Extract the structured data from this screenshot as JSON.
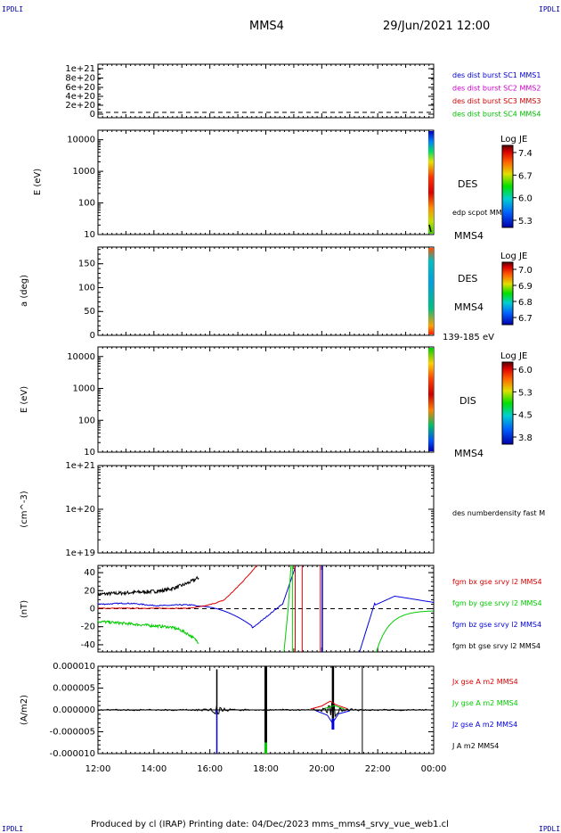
{
  "header": {
    "corner_label": "IPDLI",
    "spacecraft": "MMS4",
    "datetime": "29/Jun/2021 12:00"
  },
  "footer": {
    "text": "Produced by cl (IRAP)   Printing date: 04/Dec/2023   mms_mms4_srvy_vue_web1.cl"
  },
  "colors": {
    "mms1": "#0000cc",
    "mms2": "#cc00cc",
    "mms3": "#cc0000",
    "mms4": "#00bb00",
    "bx": "#dd0000",
    "by": "#00cc00",
    "bz": "#0000dd",
    "bt": "#000000"
  },
  "chart_data": [
    {
      "type": "line",
      "panel": "burst",
      "ylabel": "",
      "yticks": [
        "1e+21",
        "8e+20",
        "6e+20",
        "4e+20",
        "2e+20",
        "0"
      ],
      "legend": [
        "des dist burst SC1 MMS1",
        "des dist burst SC2 MMS2",
        "des dist burst SC3 MMS3",
        "des dist burst SC4 MMS4"
      ]
    },
    {
      "type": "heatmap",
      "panel": "des-energy",
      "ylabel": "E (eV)",
      "yscale": "log",
      "ylim": [
        10,
        20000
      ],
      "yticks": [
        "10000",
        "1000",
        "100",
        "10"
      ],
      "label": "DES",
      "overlay_label": "edp scpot MMS4",
      "spacecraft_label": "MMS4",
      "colorbar": {
        "title": "Log JE",
        "ticks": [
          "7.4",
          "6.7",
          "6.0",
          "5.3"
        ]
      }
    },
    {
      "type": "heatmap",
      "panel": "des-pitch",
      "ylabel": "a (deg)",
      "ylim": [
        0,
        180
      ],
      "yticks": [
        "150",
        "100",
        "50",
        "0"
      ],
      "label": "DES",
      "spacecraft_label": "MMS4",
      "energy_range": "139-185 eV",
      "colorbar": {
        "title": "Log JE",
        "ticks": [
          "7.0",
          "6.9",
          "6.8",
          "6.7"
        ]
      }
    },
    {
      "type": "heatmap",
      "panel": "dis-energy",
      "ylabel": "E (eV)",
      "yscale": "log",
      "ylim": [
        10,
        20000
      ],
      "yticks": [
        "10000",
        "1000",
        "100",
        "10"
      ],
      "label": "DIS",
      "spacecraft_label": "MMS4",
      "colorbar": {
        "title": "Log JE",
        "ticks": [
          "6.0",
          "5.3",
          "4.5",
          "3.8"
        ]
      }
    },
    {
      "type": "line",
      "panel": "density",
      "ylabel": "(cm^-3)",
      "yscale": "log",
      "yticks": [
        "1e+21",
        "1e+20",
        "1e+19"
      ],
      "legend": [
        "des numberdensity fast M"
      ]
    },
    {
      "type": "line",
      "panel": "fgm",
      "ylabel": "(nT)",
      "ylim": [
        -48,
        48
      ],
      "yticks": [
        "40",
        "20",
        "0",
        "-20",
        "-40"
      ],
      "legend": [
        "fgm bx gse srvy l2 MMS4",
        "fgm by gse srvy l2 MMS4",
        "fgm bz gse srvy l2 MMS4",
        "fgm bt gse srvy l2 MMS4"
      ]
    },
    {
      "type": "line",
      "panel": "current",
      "ylabel": "(A/m2)",
      "ylim": [
        -1e-05,
        1e-05
      ],
      "yticks": [
        "0.000010",
        "0.000005",
        "0.000000",
        "-0.000005",
        "-0.000010"
      ],
      "legend": [
        "Jx gse A m2 MMS4",
        "Jy gse A m2 MMS4",
        "Jz gse A m2 MMS4",
        "J A m2 MMS4"
      ]
    }
  ],
  "xaxis": {
    "ticks": [
      "12:00",
      "14:00",
      "16:00",
      "18:00",
      "20:00",
      "22:00",
      "00:00"
    ],
    "start_hour": 12,
    "end_hour": 24
  }
}
